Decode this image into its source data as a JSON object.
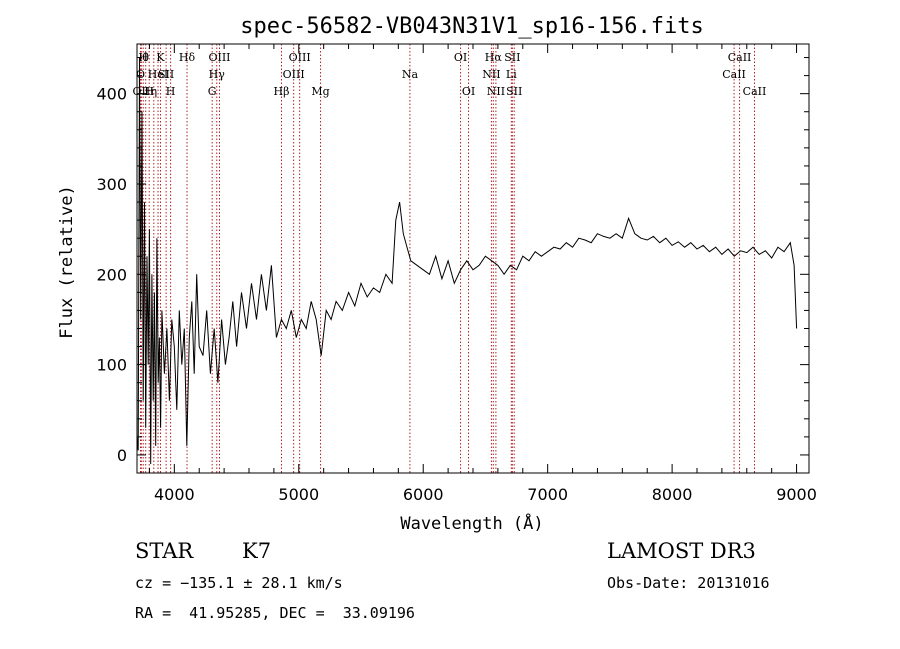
{
  "chart_data": {
    "type": "line",
    "title": "spec-56582-VB043N31V1_sp16-156.fits",
    "xlabel": "Wavelength (Å)",
    "ylabel": "Flux (relative)",
    "xlim": [
      3700,
      9100
    ],
    "ylim": [
      -20,
      455
    ],
    "xticks": [
      4000,
      5000,
      6000,
      7000,
      8000,
      9000
    ],
    "yticks": [
      0,
      100,
      200,
      300,
      400
    ],
    "line_color": "#000000",
    "marker_color": "#b22222",
    "series": [
      {
        "name": "flux",
        "x": [
          3700,
          3710,
          3720,
          3730,
          3740,
          3750,
          3760,
          3770,
          3780,
          3790,
          3800,
          3810,
          3820,
          3830,
          3840,
          3850,
          3860,
          3870,
          3880,
          3890,
          3900,
          3920,
          3940,
          3960,
          3980,
          4000,
          4020,
          4040,
          4060,
          4080,
          4100,
          4120,
          4140,
          4160,
          4180,
          4200,
          4230,
          4260,
          4290,
          4320,
          4350,
          4380,
          4410,
          4440,
          4470,
          4500,
          4540,
          4580,
          4620,
          4660,
          4700,
          4740,
          4780,
          4820,
          4860,
          4900,
          4940,
          4980,
          5020,
          5060,
          5100,
          5140,
          5180,
          5220,
          5260,
          5300,
          5350,
          5400,
          5450,
          5500,
          5550,
          5600,
          5650,
          5700,
          5750,
          5780,
          5810,
          5840,
          5870,
          5900,
          5950,
          6000,
          6050,
          6100,
          6150,
          6200,
          6250,
          6300,
          6350,
          6400,
          6450,
          6500,
          6550,
          6600,
          6650,
          6700,
          6750,
          6800,
          6850,
          6900,
          6950,
          7000,
          7050,
          7100,
          7150,
          7200,
          7250,
          7300,
          7350,
          7400,
          7450,
          7500,
          7550,
          7600,
          7650,
          7700,
          7750,
          7800,
          7850,
          7900,
          7950,
          8000,
          8050,
          8100,
          8150,
          8200,
          8250,
          8300,
          8350,
          8400,
          8450,
          8500,
          8550,
          8600,
          8650,
          8700,
          8750,
          8800,
          8850,
          8900,
          8950,
          8980,
          9000
        ],
        "y": [
          20,
          5,
          440,
          150,
          380,
          60,
          280,
          30,
          220,
          100,
          250,
          -10,
          200,
          60,
          180,
          10,
          240,
          80,
          130,
          30,
          160,
          90,
          140,
          60,
          150,
          120,
          50,
          160,
          100,
          140,
          10,
          130,
          170,
          90,
          200,
          120,
          110,
          160,
          90,
          140,
          80,
          150,
          100,
          130,
          170,
          120,
          180,
          140,
          190,
          150,
          200,
          160,
          210,
          130,
          150,
          140,
          160,
          130,
          150,
          140,
          170,
          150,
          110,
          160,
          150,
          170,
          160,
          180,
          165,
          190,
          175,
          185,
          180,
          200,
          190,
          260,
          280,
          245,
          230,
          215,
          210,
          205,
          200,
          220,
          195,
          215,
          190,
          205,
          215,
          205,
          210,
          220,
          215,
          210,
          200,
          210,
          205,
          220,
          215,
          225,
          220,
          225,
          230,
          228,
          235,
          230,
          240,
          238,
          235,
          245,
          242,
          240,
          245,
          240,
          262,
          245,
          240,
          238,
          242,
          235,
          240,
          232,
          236,
          230,
          235,
          228,
          232,
          225,
          230,
          222,
          228,
          220,
          226,
          224,
          230,
          222,
          226,
          218,
          230,
          225,
          235,
          210,
          140
        ]
      }
    ],
    "lines": [
      {
        "x": 3728,
        "label": "O",
        "row": 2
      },
      {
        "x": 3735,
        "label": "OII",
        "row": 3
      },
      {
        "x": 3750,
        "label": "H",
        "row": 1
      },
      {
        "x": 3770,
        "label": "θ",
        "row": 1
      },
      {
        "x": 3798,
        "label": "H",
        "row": 3
      },
      {
        "x": 3835,
        "label": "η",
        "row": 3
      },
      {
        "x": 3869,
        "label": "HeI",
        "row": 2
      },
      {
        "x": 3889,
        "label": "K",
        "row": 1
      },
      {
        "x": 3934,
        "label": "SII",
        "row": 2
      },
      {
        "x": 3970,
        "label": "H",
        "row": 3
      },
      {
        "x": 4102,
        "label": "Hδ",
        "row": 1
      },
      {
        "x": 4304,
        "label": "G",
        "row": 3
      },
      {
        "x": 4341,
        "label": "Hγ",
        "row": 2
      },
      {
        "x": 4363,
        "label": "OIII",
        "row": 1
      },
      {
        "x": 4861,
        "label": "Hβ",
        "row": 3
      },
      {
        "x": 4959,
        "label": "OIII",
        "row": 2
      },
      {
        "x": 5007,
        "label": "OIII",
        "row": 1
      },
      {
        "x": 5175,
        "label": "Mg",
        "row": 3
      },
      {
        "x": 5893,
        "label": "Na",
        "row": 2
      },
      {
        "x": 6300,
        "label": "OI",
        "row": 1
      },
      {
        "x": 6364,
        "label": "OI",
        "row": 3
      },
      {
        "x": 6548,
        "label": "NII",
        "row": 2
      },
      {
        "x": 6563,
        "label": "Hα",
        "row": 1
      },
      {
        "x": 6584,
        "label": "NII",
        "row": 3
      },
      {
        "x": 6708,
        "label": "Li",
        "row": 2
      },
      {
        "x": 6716,
        "label": "SII",
        "row": 1
      },
      {
        "x": 6731,
        "label": "SII",
        "row": 3
      },
      {
        "x": 8498,
        "label": "CaII",
        "row": 2
      },
      {
        "x": 8542,
        "label": "CaII",
        "row": 1
      },
      {
        "x": 8662,
        "label": "CaII",
        "row": 3
      }
    ]
  },
  "info": {
    "class": "STAR",
    "subclass": "K7",
    "survey": "LAMOST DR3",
    "cz": "cz = −135.1 ± 28.1 km/s",
    "obs_date": "Obs-Date: 20131016",
    "coords": "RA =  41.95285, DEC =  33.09196"
  }
}
